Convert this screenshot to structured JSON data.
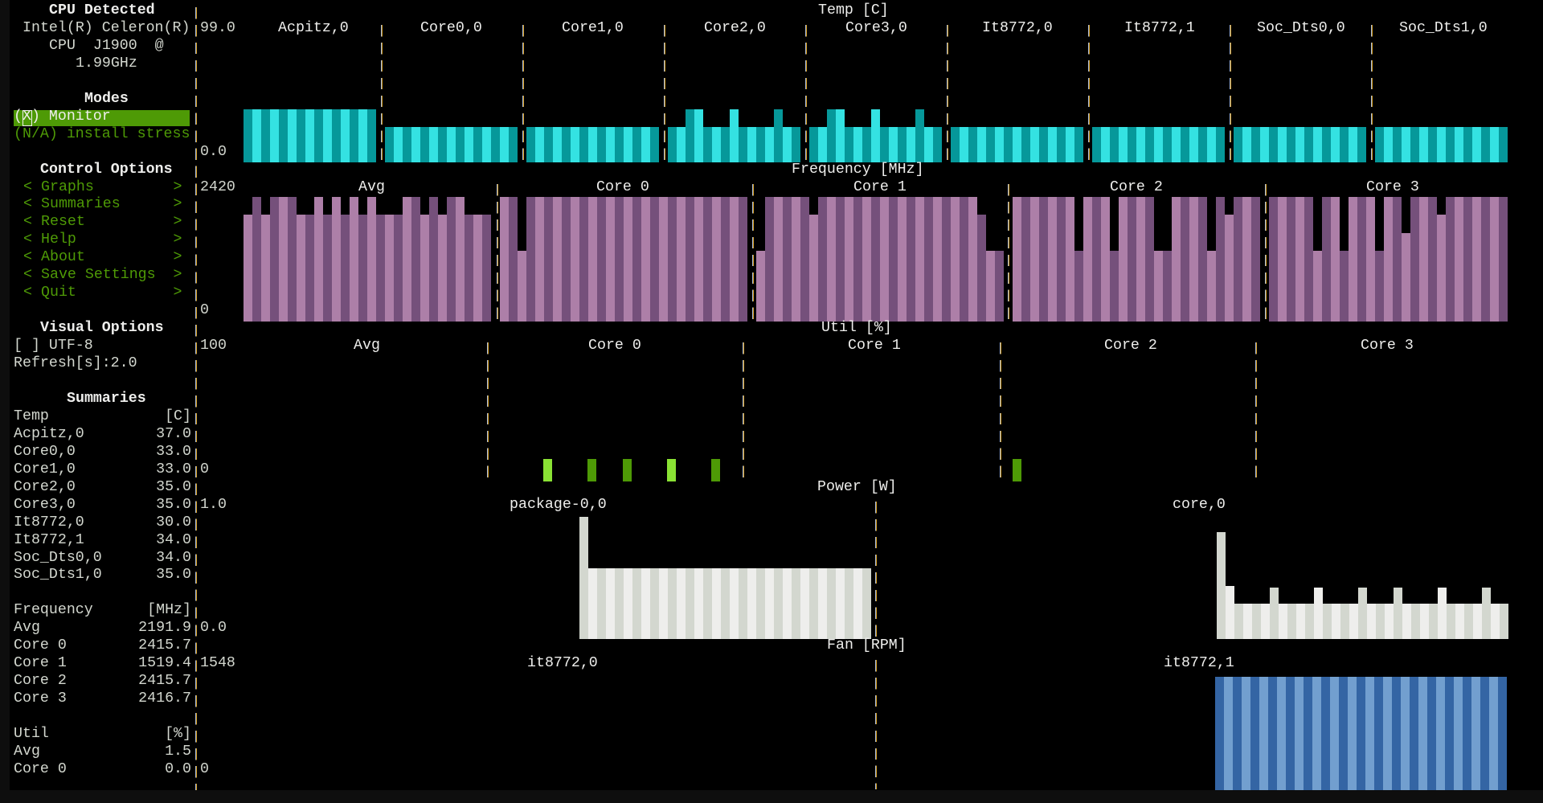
{
  "sidebar": {
    "cpu_detected": {
      "title": "CPU Detected",
      "lines": [
        "Intel(R) Celeron(R)",
        "CPU  J1900  @",
        "1.99GHz"
      ]
    },
    "modes": {
      "title": "Modes",
      "monitor": {
        "label": "(X) Monitor",
        "selected": true
      },
      "stress": {
        "label": "(N/A) install stress",
        "selected": false
      }
    },
    "control_options": {
      "title": "Control Options",
      "left_arrow": "<",
      "right_arrow": ">",
      "items": [
        "Graphs",
        "Summaries",
        "Reset",
        "Help",
        "About",
        "Save Settings",
        "Quit"
      ]
    },
    "visual_options": {
      "title": "Visual Options",
      "utf8_checkbox": "[ ] UTF-8",
      "refresh": "Refresh[s]:2.0"
    },
    "summaries": {
      "title": "Summaries",
      "groups": [
        {
          "label": "Temp",
          "unit": "[C]",
          "rows": [
            [
              "Acpitz,0",
              "37.0"
            ],
            [
              "Core0,0",
              "33.0"
            ],
            [
              "Core1,0",
              "33.0"
            ],
            [
              "Core2,0",
              "35.0"
            ],
            [
              "Core3,0",
              "35.0"
            ],
            [
              "It8772,0",
              "30.0"
            ],
            [
              "It8772,1",
              "34.0"
            ],
            [
              "Soc_Dts0,0",
              "34.0"
            ],
            [
              "Soc_Dts1,0",
              "35.0"
            ]
          ]
        },
        {
          "label": "Frequency",
          "unit": "[MHz]",
          "rows": [
            [
              "Avg",
              "2191.9"
            ],
            [
              "Core 0",
              "2415.7"
            ],
            [
              "Core 1",
              "1519.4"
            ],
            [
              "Core 2",
              "2415.7"
            ],
            [
              "Core 3",
              "2416.7"
            ]
          ]
        },
        {
          "label": "Util",
          "unit": "[%]",
          "rows": [
            [
              "Avg",
              "1.5"
            ],
            [
              "Core 0",
              "0.0"
            ]
          ]
        }
      ]
    }
  },
  "chart_data": [
    {
      "id": "temp",
      "type": "bar",
      "title": "Temp [C]",
      "unit": "C",
      "ymax": 99,
      "ymax_label": "99.0",
      "ymin_label": "0.0",
      "palette": {
        "dark": "#06989a",
        "light": "#34e2e2"
      },
      "sections": [
        {
          "title": "Acpitz,0",
          "first_shade": "dark",
          "values": [
            37,
            37,
            37,
            37,
            37,
            37,
            37,
            37,
            37,
            37,
            37,
            37,
            37,
            37,
            37
          ]
        },
        {
          "title": "Core0,0",
          "first_shade": "dark",
          "values": [
            33,
            33,
            33,
            33,
            33,
            33,
            33,
            33,
            33,
            33,
            33,
            33,
            33,
            33,
            33
          ]
        },
        {
          "title": "Core1,0",
          "first_shade": "dark",
          "values": [
            33,
            33,
            33,
            33,
            33,
            33,
            33,
            33,
            33,
            33,
            33,
            33,
            33,
            33,
            33
          ]
        },
        {
          "title": "Core2,0",
          "first_shade": "dark",
          "values": [
            35,
            35,
            45,
            45,
            35,
            35,
            35,
            45,
            35,
            35,
            35,
            35,
            45,
            35,
            35
          ]
        },
        {
          "title": "Core3,0",
          "first_shade": "dark",
          "values": [
            35,
            35,
            45,
            45,
            35,
            35,
            35,
            45,
            35,
            35,
            35,
            35,
            45,
            35,
            35
          ]
        },
        {
          "title": "It8772,0",
          "first_shade": "dark",
          "values": [
            30,
            30,
            30,
            30,
            30,
            30,
            30,
            30,
            30,
            30,
            30,
            30,
            30,
            30,
            30
          ]
        },
        {
          "title": "It8772,1",
          "first_shade": "dark",
          "values": [
            34,
            34,
            34,
            34,
            34,
            34,
            34,
            34,
            34,
            34,
            34,
            34,
            34,
            34,
            34
          ]
        },
        {
          "title": "Soc_Dts0,0",
          "first_shade": "dark",
          "values": [
            34,
            34,
            34,
            34,
            34,
            34,
            34,
            34,
            34,
            34,
            34,
            34,
            34,
            34,
            34
          ]
        },
        {
          "title": "Soc_Dts1,0",
          "first_shade": "dark",
          "values": [
            35,
            35,
            35,
            35,
            35,
            35,
            35,
            35,
            35,
            35,
            35,
            35,
            35,
            35,
            35
          ]
        }
      ]
    },
    {
      "id": "freq",
      "type": "bar",
      "title": "Frequency [MHz]",
      "unit": "MHz",
      "ymax": 2420,
      "ymax_label": "2420",
      "ymin_label": "0",
      "palette": {
        "dark": "#75507b",
        "light": "#ad7fa8"
      },
      "sections": [
        {
          "title": "Avg",
          "first_shade": "light",
          "values": [
            2100,
            2416,
            2100,
            2416,
            2416,
            2416,
            2100,
            2100,
            2416,
            2100,
            2416,
            2100,
            2416,
            2100,
            2416,
            2100,
            2100,
            2100,
            2416,
            2416,
            2100,
            2416,
            2100,
            2416,
            2416,
            2100,
            2100,
            2100
          ]
        },
        {
          "title": "Core 0",
          "first_shade": "light",
          "values": [
            2416,
            2416,
            1519,
            2416,
            2416,
            2416,
            2416,
            2416,
            2416,
            2416,
            2416,
            2416,
            2416,
            2416,
            2416,
            2416,
            2416,
            2416,
            2416,
            2416,
            2416,
            2416,
            2416,
            2416,
            2416,
            2416,
            2416,
            2416
          ]
        },
        {
          "title": "Core 1",
          "first_shade": "light",
          "values": [
            1519,
            2416,
            2416,
            2416,
            2416,
            2416,
            2100,
            2416,
            2416,
            2416,
            2416,
            2416,
            2416,
            2416,
            2416,
            2416,
            2416,
            2416,
            2416,
            2416,
            2416,
            2416,
            2416,
            2416,
            2416,
            2100,
            1519,
            1519
          ]
        },
        {
          "title": "Core 2",
          "first_shade": "light",
          "values": [
            2416,
            2416,
            2416,
            2416,
            2416,
            2416,
            2416,
            1519,
            2416,
            2416,
            2416,
            1519,
            2416,
            2416,
            2416,
            2416,
            1519,
            1519,
            2416,
            2416,
            2416,
            2416,
            1519,
            2416,
            2100,
            2416,
            2416,
            2416
          ]
        },
        {
          "title": "Core 3",
          "first_shade": "dark",
          "values": [
            2416,
            2416,
            2416,
            2416,
            2416,
            1519,
            2416,
            2416,
            1519,
            2416,
            2416,
            2416,
            1519,
            2416,
            2416,
            1750,
            2416,
            2416,
            2416,
            2100,
            2416,
            2416,
            2416,
            2416,
            2416,
            2416,
            2416
          ]
        }
      ]
    },
    {
      "id": "util",
      "type": "bar",
      "title": "Util [%]",
      "unit": "%",
      "ymax": 100,
      "ymax_label": "100",
      "ymin_label": "0",
      "palette": {
        "dark": "#4e9a06",
        "light": "#8ae234"
      },
      "sections": [
        {
          "title": "Avg",
          "first_shade": "light",
          "values": []
        },
        {
          "title": "Core 0",
          "first_shade": "light",
          "values": [
            0,
            0,
            0,
            0,
            0,
            0,
            18,
            0,
            0,
            0,
            0,
            18,
            0,
            0,
            0,
            18,
            0,
            0,
            0,
            0,
            18,
            0,
            0,
            0,
            0,
            18,
            0,
            0
          ]
        },
        {
          "title": "Core 1",
          "first_shade": "light",
          "values": []
        },
        {
          "title": "Core 2",
          "first_shade": "light",
          "values": [
            0,
            18,
            0,
            0,
            0,
            0,
            0,
            0,
            0,
            0,
            0,
            0,
            0,
            0,
            0,
            0,
            0,
            0,
            0,
            0,
            0,
            0,
            0,
            0,
            0,
            0,
            0,
            0
          ]
        },
        {
          "title": "Core 3",
          "first_shade": "light",
          "values": []
        }
      ]
    },
    {
      "id": "power",
      "type": "bar",
      "title": "Power [W]",
      "unit": "W",
      "ymax": 1.0,
      "ymax_label": "1.0",
      "ymin_label": "0.0",
      "palette": {
        "dark": "#d3d7cf",
        "light": "#eeeeec"
      },
      "sections": [
        {
          "title": "package-0,0",
          "first_shade": "dark",
          "values": [
            0.98,
            0.57,
            0.57,
            0.57,
            0.57,
            0.57,
            0.57,
            0.57,
            0.57,
            0.57,
            0.57,
            0.57,
            0.57,
            0.57,
            0.57,
            0.57,
            0.57,
            0.57,
            0.57,
            0.57,
            0.57,
            0.57,
            0.57,
            0.57,
            0.57,
            0.57,
            0.57,
            0.57,
            0.57,
            0.57,
            0.57,
            0.57,
            0.57
          ]
        },
        {
          "title": "core,0",
          "first_shade": "dark",
          "values": [
            0.86,
            0.43,
            0.29,
            0.29,
            0.29,
            0.29,
            0.41,
            0.29,
            0.29,
            0.29,
            0.29,
            0.41,
            0.29,
            0.29,
            0.29,
            0.29,
            0.41,
            0.29,
            0.29,
            0.29,
            0.41,
            0.29,
            0.29,
            0.29,
            0.29,
            0.41,
            0.29,
            0.29,
            0.29,
            0.29,
            0.41,
            0.29,
            0.29
          ]
        }
      ]
    },
    {
      "id": "fan",
      "type": "bar",
      "title": "Fan [RPM]",
      "unit": "RPM",
      "ymax": 1548,
      "ymax_label": "1548",
      "ymin_label": "0",
      "palette": {
        "dark": "#3465a4",
        "light": "#729fcf"
      },
      "sections": [
        {
          "title": "it8772,0",
          "first_shade": "dark",
          "values": []
        },
        {
          "title": "it8772,1",
          "first_shade": "dark",
          "values": [
            1548,
            1548,
            1548,
            1548,
            1548,
            1548,
            1548,
            1548,
            1548,
            1548,
            1548,
            1548,
            1548,
            1548,
            1548,
            1548,
            1548,
            1548,
            1548,
            1548,
            1548,
            1548,
            1548,
            1548,
            1548,
            1548,
            1548,
            1548,
            1548,
            1548,
            1548,
            1548,
            1548
          ]
        }
      ]
    }
  ]
}
